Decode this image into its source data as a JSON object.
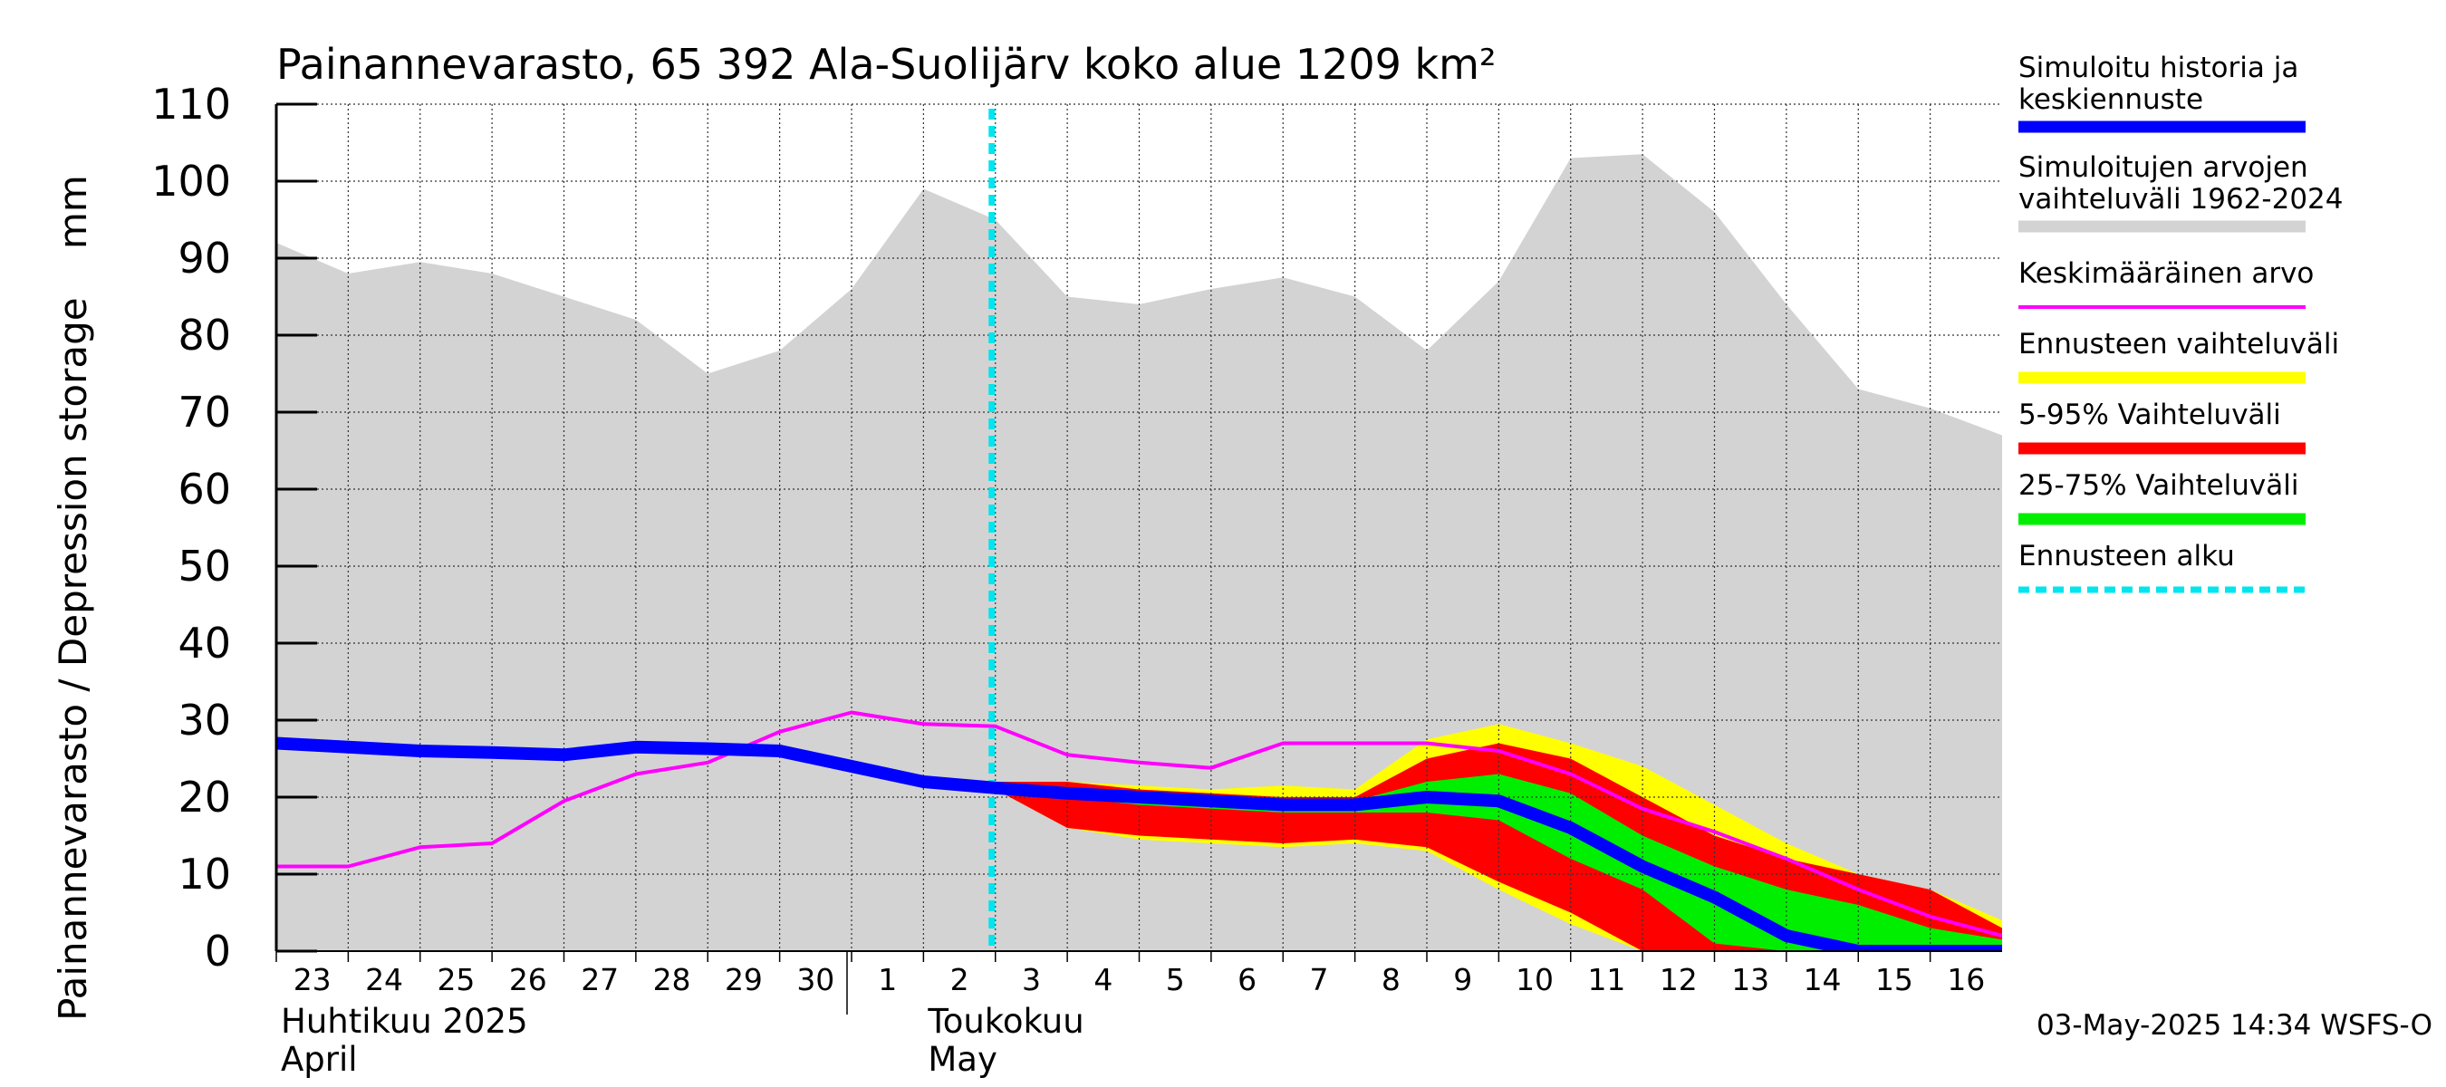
{
  "chart_data": {
    "type": "area",
    "title": "Painannevarasto, 65 392 Ala-Suolijärv koko alue 1209 km²",
    "ylabel": "Painannevarasto / Depression storage    mm",
    "ylim": [
      0,
      110
    ],
    "yticks": [
      0,
      10,
      20,
      30,
      40,
      50,
      60,
      70,
      80,
      90,
      100,
      110
    ],
    "grid": true,
    "legend_position": "right",
    "timestamp": "03-May-2025 14:34 WSFS-O",
    "month_labels": [
      {
        "line1": "Huhtikuu  2025",
        "line2": "April"
      },
      {
        "line1": "Toukokuu",
        "line2": "May"
      }
    ],
    "x_day_labels": [
      "23",
      "24",
      "25",
      "26",
      "27",
      "28",
      "29",
      "30",
      "1",
      "2",
      "3",
      "4",
      "5",
      "6",
      "7",
      "8",
      "9",
      "10",
      "11",
      "12",
      "13",
      "14",
      "15",
      "16"
    ],
    "forecast_start_index": 10,
    "sim_range": {
      "x": [
        0,
        1,
        2,
        3,
        4,
        5,
        6,
        7,
        8,
        9,
        10,
        11,
        12,
        13,
        14,
        15,
        16,
        17,
        18,
        19,
        20,
        21,
        22,
        23,
        24
      ],
      "upper": [
        92,
        88,
        89.5,
        88,
        85,
        82,
        75,
        78,
        86,
        99,
        95,
        85,
        84,
        86,
        87.5,
        85,
        78,
        87,
        103,
        103.5,
        96,
        84,
        73,
        70.5,
        67
      ],
      "lower": [
        0,
        0,
        0,
        0,
        0,
        0,
        0,
        0,
        0,
        0,
        0,
        0,
        0,
        0,
        0,
        0,
        0,
        0,
        0,
        0,
        0,
        0,
        0,
        0,
        0
      ]
    },
    "forecast_range": {
      "x": [
        10,
        11,
        12,
        13,
        14,
        15,
        16,
        17,
        18,
        19,
        20,
        21,
        22,
        23,
        24
      ],
      "upper": [
        22,
        22,
        21.5,
        21,
        21.5,
        21,
        27.5,
        29.5,
        27,
        24,
        19,
        14,
        10,
        8,
        4
      ],
      "lower": [
        21,
        16,
        14.5,
        14,
        13.5,
        14,
        13,
        8,
        3.5,
        0,
        0,
        0,
        0,
        0,
        0
      ]
    },
    "band_5_95": {
      "x": [
        10,
        11,
        12,
        13,
        14,
        15,
        16,
        17,
        18,
        19,
        20,
        21,
        22,
        23,
        24
      ],
      "upper": [
        22,
        22,
        21,
        20.5,
        20,
        20,
        25,
        27,
        25,
        20,
        15,
        12,
        10,
        8,
        3
      ],
      "lower": [
        21,
        16,
        15,
        14.5,
        14,
        14.5,
        13.5,
        9,
        5,
        0,
        0,
        0,
        0,
        0,
        0
      ]
    },
    "band_25_75": {
      "x": [
        10,
        11,
        12,
        13,
        14,
        15,
        16,
        17,
        18,
        19,
        20,
        21,
        22,
        23,
        24
      ],
      "upper": [
        21.5,
        21,
        20.5,
        20,
        19.5,
        19.5,
        22,
        23,
        20.5,
        15,
        11,
        8,
        6,
        3,
        1.5
      ],
      "lower": [
        21,
        20,
        19,
        18.5,
        18,
        18,
        18,
        17,
        12,
        8,
        1,
        0,
        0,
        0,
        0
      ]
    },
    "series": [
      {
        "name": "Simuloitu historia ja keskiennuste",
        "x": [
          0,
          1,
          2,
          3,
          4,
          5,
          6,
          7,
          8,
          9,
          10,
          11,
          12,
          13,
          14,
          15,
          16,
          17,
          18,
          19,
          20,
          21,
          22,
          23,
          24
        ],
        "values": [
          27,
          26.5,
          26,
          25.8,
          25.5,
          26.5,
          26.3,
          26,
          24,
          22,
          21.2,
          20.5,
          20,
          19.5,
          19,
          19,
          20,
          19.5,
          16,
          11,
          7,
          2,
          0,
          0,
          0
        ]
      },
      {
        "name": "Keskimääräinen arvo",
        "x": [
          0,
          1,
          2,
          3,
          4,
          5,
          6,
          7,
          8,
          9,
          10,
          11,
          12,
          13,
          14,
          15,
          16,
          17,
          18,
          19,
          20,
          21,
          22,
          23,
          24
        ],
        "values": [
          11,
          11,
          13.5,
          14,
          19.5,
          23,
          24.5,
          28.5,
          31,
          29.5,
          29.2,
          25.5,
          24.5,
          23.8,
          27,
          27,
          27,
          26,
          23,
          18.5,
          15.5,
          12,
          8,
          4.5,
          2
        ]
      }
    ],
    "legend": [
      {
        "line1": "Simuloitu historia ja",
        "line2": "keskiennuste",
        "color": "#0000ff",
        "style": "thick"
      },
      {
        "line1": "Simuloitujen arvojen",
        "line2": "vaihteluväli 1962-2024",
        "color": "#d3d3d3",
        "style": "thick"
      },
      {
        "line1": "Keskimääräinen arvo",
        "line2": "",
        "color": "#ff00ff",
        "style": "thin"
      },
      {
        "line1": "Ennusteen vaihteluväli",
        "line2": "",
        "color": "#ffff00",
        "style": "thick"
      },
      {
        "line1": "5-95% Vaihteluväli",
        "line2": "",
        "color": "#ff0000",
        "style": "thick"
      },
      {
        "line1": "25-75% Vaihteluväli",
        "line2": "",
        "color": "#00ee00",
        "style": "thick"
      },
      {
        "line1": "Ennusteen alku",
        "line2": "",
        "color": "#00e5ee",
        "style": "dashed"
      }
    ],
    "colors": {
      "sim_range": "#d3d3d3",
      "forecast_range": "#ffff00",
      "band_5_95": "#ff0000",
      "band_25_75": "#00ee00",
      "median": "#0000ff",
      "mean": "#ff00ff",
      "forecast_start": "#00e5ee"
    }
  }
}
